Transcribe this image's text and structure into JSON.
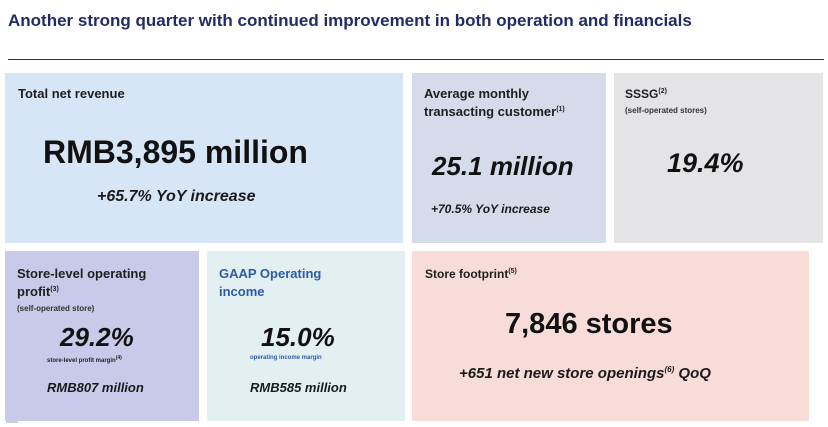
{
  "slide": {
    "title": "Another strong quarter with continued improvement in both operation and financials"
  },
  "cards": {
    "revenue": {
      "label": "Total net revenue",
      "value": "RMB3,895 million",
      "note": "+65.7% YoY increase",
      "color": "#d6e6f7"
    },
    "customers": {
      "label_line1": "Average monthly",
      "label_line2": "transacting customer",
      "label_sup": "(1)",
      "value": "25.1 million",
      "note": "+70.5% YoY increase",
      "color": "#d5dbea"
    },
    "sssg": {
      "label": "SSSG",
      "label_sup": "(2)",
      "sublabel": "(self-operated stores)",
      "value": "19.4%",
      "color": "#e4e4e7"
    },
    "store_profit": {
      "label_line1": "Store-level operating",
      "label_line2": "profit",
      "label_sup": "(3)",
      "sublabel": "(self-operated store)",
      "value": "29.2%",
      "caption": "store-level profit margin",
      "caption_sup": "(4)",
      "note": "RMB807 million",
      "color": "#c9c9ea"
    },
    "gaap": {
      "label_line1": "GAAP Operating",
      "label_line2": "income",
      "value": "15.0%",
      "caption": "operating income margin",
      "note": "RMB585 million",
      "color": "#e3f0f2"
    },
    "footprint": {
      "label": "Store footprint",
      "label_sup": "(5)",
      "value": "7,846 stores",
      "note_pre": "+651 net new store openings",
      "note_sup": "(6)",
      "note_post": " QoQ",
      "color": "#f7dcd7"
    }
  },
  "colors": {
    "title": "#232b66",
    "accent_blue": "#2f5aa8"
  }
}
